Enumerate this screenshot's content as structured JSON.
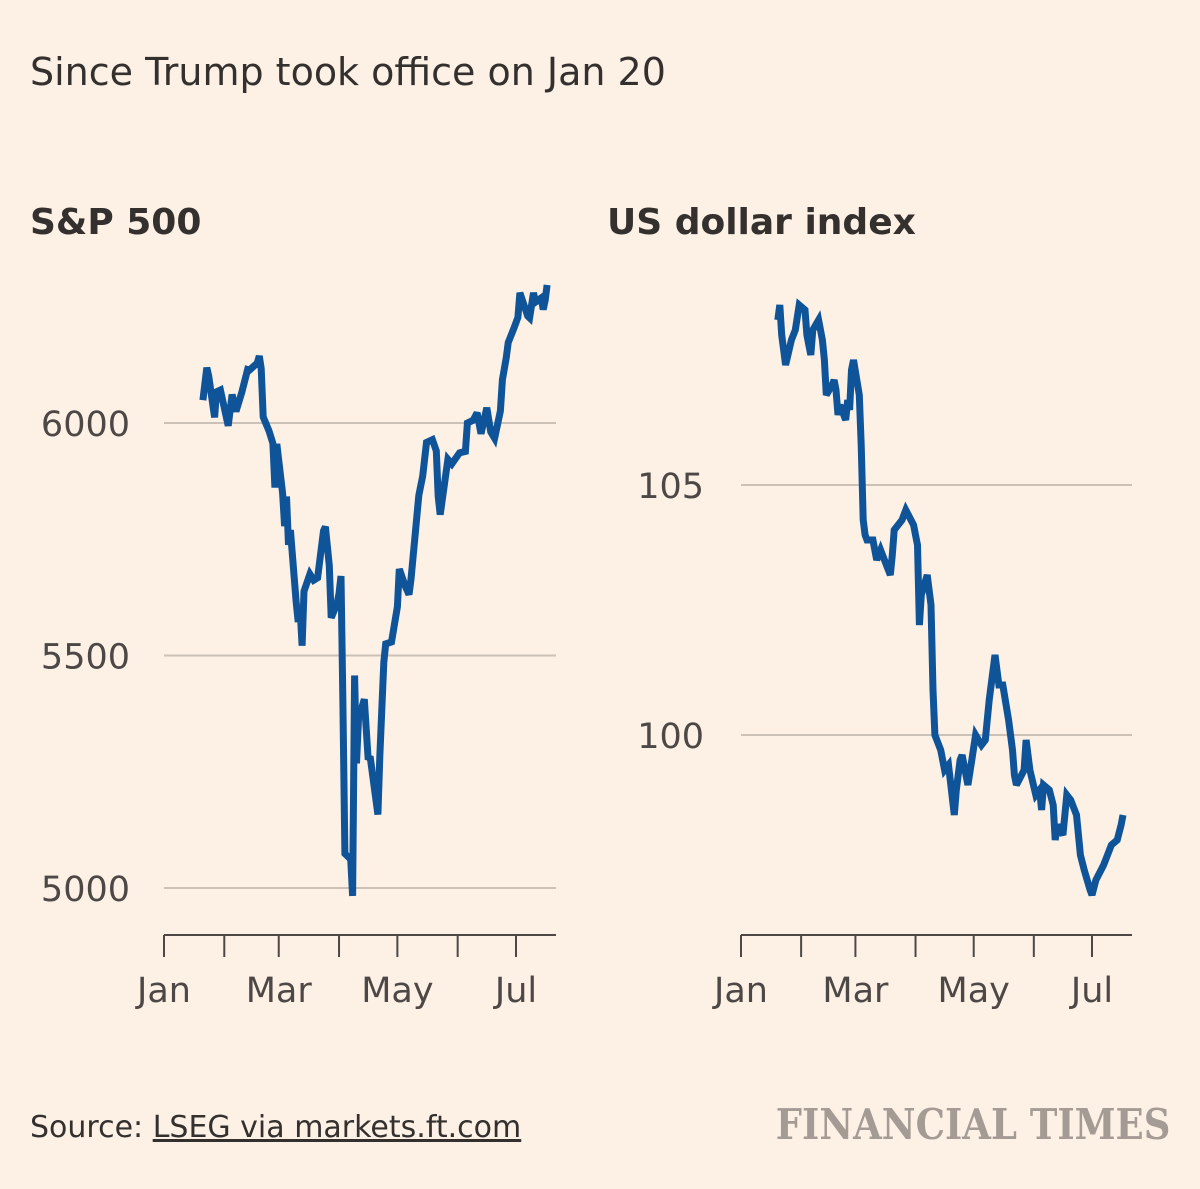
{
  "subtitle": "Since Trump took office on Jan 20",
  "colors": {
    "background": "#fdf1e6",
    "line": "#0f5499",
    "grid": "#ccc1b7",
    "text": "#33302e",
    "logo": "#a39b94"
  },
  "chart_data": [
    {
      "type": "line",
      "title": "S&P 500",
      "x_ticks": [
        "Jan",
        "Mar",
        "May",
        "Jul"
      ],
      "x_range": [
        "2025-01-01",
        "2025-07-17"
      ],
      "y_ticks": [
        "6000",
        "5500",
        "5000"
      ],
      "ylim": [
        4900,
        6400
      ],
      "series": [
        {
          "name": "S&P 500",
          "dates": [
            "2025-01-21",
            "2025-01-23",
            "2025-01-24",
            "2025-01-27",
            "2025-01-28",
            "2025-01-30",
            "2025-02-03",
            "2025-02-05",
            "2025-02-07",
            "2025-02-10",
            "2025-02-13",
            "2025-02-14",
            "2025-02-18",
            "2025-02-19",
            "2025-02-20",
            "2025-02-21",
            "2025-02-24",
            "2025-02-26",
            "2025-02-27",
            "2025-02-28",
            "2025-03-03",
            "2025-03-04",
            "2025-03-05",
            "2025-03-06",
            "2025-03-07",
            "2025-03-10",
            "2025-03-11",
            "2025-03-12",
            "2025-03-13",
            "2025-03-14",
            "2025-03-17",
            "2025-03-19",
            "2025-03-21",
            "2025-03-24",
            "2025-03-25",
            "2025-03-27",
            "2025-03-28",
            "2025-03-31",
            "2025-04-01",
            "2025-04-02",
            "2025-04-03",
            "2025-04-04",
            "2025-04-07",
            "2025-04-08",
            "2025-04-09",
            "2025-04-10",
            "2025-04-11",
            "2025-04-14",
            "2025-04-16",
            "2025-04-17",
            "2025-04-21",
            "2025-04-22",
            "2025-04-24",
            "2025-04-25",
            "2025-04-28",
            "2025-05-01",
            "2025-05-02",
            "2025-05-05",
            "2025-05-07",
            "2025-05-08",
            "2025-05-12",
            "2025-05-14",
            "2025-05-16",
            "2025-05-19",
            "2025-05-21",
            "2025-05-22",
            "2025-05-23",
            "2025-05-27",
            "2025-05-29",
            "2025-06-02",
            "2025-06-05",
            "2025-06-06",
            "2025-06-09",
            "2025-06-11",
            "2025-06-13",
            "2025-06-16",
            "2025-06-18",
            "2025-06-20",
            "2025-06-23",
            "2025-06-24",
            "2025-06-26",
            "2025-06-27",
            "2025-06-30",
            "2025-07-02",
            "2025-07-03",
            "2025-07-07",
            "2025-07-08",
            "2025-07-10",
            "2025-07-11",
            "2025-07-14",
            "2025-07-15",
            "2025-07-16",
            "2025-07-17"
          ],
          "values": [
            6049,
            6119,
            6101,
            6012,
            6067,
            6071,
            5994,
            6061,
            6025,
            6066,
            6115,
            6114,
            6129,
            6144,
            6117,
            6013,
            5983,
            5956,
            5861,
            5955,
            5849,
            5778,
            5842,
            5738,
            5770,
            5614,
            5572,
            5599,
            5521,
            5638,
            5675,
            5662,
            5667,
            5768,
            5777,
            5693,
            5581,
            5612,
            5633,
            5671,
            5397,
            5074,
            5062,
            4983,
            5457,
            5268,
            5363,
            5406,
            5276,
            5283,
            5158,
            5288,
            5485,
            5525,
            5529,
            5605,
            5686,
            5650,
            5631,
            5664,
            5844,
            5886,
            5958,
            5964,
            5940,
            5842,
            5803,
            5922,
            5912,
            5936,
            5939,
            6000,
            6006,
            6022,
            5977,
            6033,
            5981,
            5967,
            6026,
            6093,
            6141,
            6173,
            6205,
            6227,
            6280,
            6230,
            6226,
            6280,
            6260,
            6269,
            6244,
            6264,
            6297
          ]
        }
      ]
    },
    {
      "type": "line",
      "title": "US dollar index",
      "x_ticks": [
        "Jan",
        "Mar",
        "May",
        "Jul"
      ],
      "x_range": [
        "2025-01-01",
        "2025-07-17"
      ],
      "y_ticks": [
        "105",
        "100"
      ],
      "ylim": [
        96,
        109
      ],
      "series": [
        {
          "name": "US dollar index",
          "dates": [
            "2025-01-20",
            "2025-01-21",
            "2025-01-22",
            "2025-01-24",
            "2025-01-27",
            "2025-01-29",
            "2025-01-31",
            "2025-02-03",
            "2025-02-04",
            "2025-02-06",
            "2025-02-07",
            "2025-02-10",
            "2025-02-12",
            "2025-02-13",
            "2025-02-14",
            "2025-02-17",
            "2025-02-18",
            "2025-02-19",
            "2025-02-20",
            "2025-02-21",
            "2025-02-24",
            "2025-02-25",
            "2025-02-26",
            "2025-02-27",
            "2025-02-28",
            "2025-03-03",
            "2025-03-04",
            "2025-03-05",
            "2025-03-06",
            "2025-03-07",
            "2025-03-10",
            "2025-03-12",
            "2025-03-14",
            "2025-03-17",
            "2025-03-19",
            "2025-03-20",
            "2025-03-21",
            "2025-03-25",
            "2025-03-27",
            "2025-03-31",
            "2025-04-01",
            "2025-04-02",
            "2025-04-03",
            "2025-04-04",
            "2025-04-07",
            "2025-04-08",
            "2025-04-09",
            "2025-04-10",
            "2025-04-11",
            "2025-04-14",
            "2025-04-16",
            "2025-04-18",
            "2025-04-21",
            "2025-04-22",
            "2025-04-24",
            "2025-04-25",
            "2025-04-28",
            "2025-04-30",
            "2025-05-02",
            "2025-05-05",
            "2025-05-07",
            "2025-05-09",
            "2025-05-12",
            "2025-05-14",
            "2025-05-16",
            "2025-05-19",
            "2025-05-21",
            "2025-05-22",
            "2025-05-23",
            "2025-05-27",
            "2025-05-28",
            "2025-05-30",
            "2025-06-02",
            "2025-06-04",
            "2025-06-05",
            "2025-06-06",
            "2025-06-09",
            "2025-06-11",
            "2025-06-12",
            "2025-06-13",
            "2025-06-16",
            "2025-06-18",
            "2025-06-20",
            "2025-06-23",
            "2025-06-25",
            "2025-06-27",
            "2025-06-30",
            "2025-07-01",
            "2025-07-03",
            "2025-07-07",
            "2025-07-09",
            "2025-07-11",
            "2025-07-14",
            "2025-07-16",
            "2025-07-17"
          ],
          "values": [
            108.3,
            108.6,
            108.0,
            107.4,
            107.9,
            108.1,
            108.6,
            108.5,
            108.0,
            107.6,
            108.1,
            108.3,
            107.9,
            107.5,
            106.8,
            107.0,
            107.1,
            106.9,
            106.4,
            106.6,
            106.3,
            106.7,
            106.5,
            107.3,
            107.5,
            106.8,
            105.8,
            104.3,
            104.0,
            103.9,
            103.9,
            103.5,
            103.7,
            103.4,
            103.2,
            103.6,
            104.1,
            104.3,
            104.5,
            104.2,
            104.0,
            103.8,
            102.2,
            102.8,
            103.2,
            102.9,
            102.6,
            100.9,
            100.0,
            99.7,
            99.3,
            99.4,
            98.4,
            98.9,
            99.5,
            99.6,
            99.0,
            99.5,
            100.0,
            99.8,
            99.9,
            100.7,
            101.6,
            101.0,
            101.0,
            100.3,
            99.7,
            99.2,
            99.0,
            99.3,
            99.9,
            99.3,
            98.8,
            98.9,
            98.5,
            99.0,
            98.9,
            98.6,
            97.9,
            98.2,
            98.0,
            98.8,
            98.7,
            98.4,
            97.6,
            97.3,
            96.9,
            96.8,
            97.1,
            97.4,
            97.6,
            97.8,
            97.9,
            98.2,
            98.4
          ]
        }
      ]
    }
  ],
  "source": {
    "label": "Source: ",
    "link": "LSEG via markets.ft.com"
  },
  "logo": "FINANCIAL TIMES"
}
